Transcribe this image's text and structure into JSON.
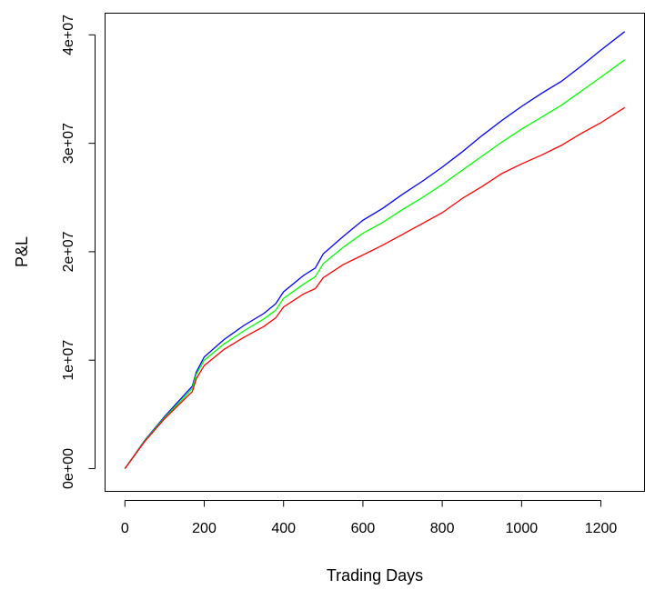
{
  "chart_data": {
    "type": "line",
    "xlabel": "Trading Days",
    "ylabel": "P&L",
    "x_ticks": [
      0,
      200,
      400,
      600,
      800,
      1000,
      1200
    ],
    "x_tick_labels": [
      "0",
      "200",
      "400",
      "600",
      "800",
      "1000",
      "1200"
    ],
    "y_ticks": [
      0,
      10000000,
      20000000,
      30000000,
      40000000
    ],
    "y_tick_labels": [
      "0e+00",
      "1e+07",
      "2e+07",
      "3e+07",
      "4e+07"
    ],
    "xlim": [
      -50,
      1310
    ],
    "ylim": [
      -2100000,
      42000000
    ],
    "grid": false,
    "series": [
      {
        "color": "#0000FF",
        "x": [
          0,
          50,
          100,
          150,
          170,
          180,
          200,
          250,
          300,
          350,
          380,
          400,
          450,
          480,
          500,
          550,
          600,
          650,
          700,
          750,
          800,
          850,
          900,
          950,
          1000,
          1050,
          1100,
          1150,
          1200,
          1260
        ],
        "y": [
          0,
          2600000,
          4800000,
          6800000,
          7600000,
          8900000,
          10300000,
          11900000,
          13200000,
          14300000,
          15200000,
          16300000,
          17800000,
          18500000,
          19800000,
          21400000,
          22900000,
          24000000,
          25300000,
          26500000,
          27800000,
          29200000,
          30700000,
          32100000,
          33400000,
          34600000,
          35700000,
          37100000,
          38600000,
          40300000
        ]
      },
      {
        "color": "#00FF00",
        "x": [
          0,
          50,
          100,
          150,
          170,
          180,
          200,
          250,
          300,
          350,
          380,
          400,
          450,
          480,
          500,
          550,
          600,
          650,
          700,
          750,
          800,
          850,
          900,
          950,
          1000,
          1050,
          1100,
          1150,
          1200,
          1260
        ],
        "y": [
          0,
          2550000,
          4700000,
          6600000,
          7400000,
          8700000,
          10000000,
          11500000,
          12700000,
          13800000,
          14600000,
          15700000,
          17000000,
          17700000,
          18900000,
          20400000,
          21700000,
          22700000,
          23900000,
          25000000,
          26200000,
          27500000,
          28800000,
          30100000,
          31300000,
          32400000,
          33500000,
          34800000,
          36100000,
          37700000
        ]
      },
      {
        "color": "#FF0000",
        "x": [
          0,
          50,
          100,
          150,
          170,
          180,
          200,
          250,
          300,
          350,
          380,
          400,
          450,
          480,
          500,
          550,
          600,
          650,
          700,
          750,
          800,
          850,
          900,
          950,
          1000,
          1050,
          1100,
          1150,
          1200,
          1260
        ],
        "y": [
          0,
          2500000,
          4600000,
          6400000,
          7100000,
          8300000,
          9500000,
          11000000,
          12100000,
          13100000,
          13900000,
          14900000,
          16100000,
          16600000,
          17600000,
          18800000,
          19700000,
          20600000,
          21600000,
          22600000,
          23600000,
          24900000,
          26000000,
          27200000,
          28100000,
          28900000,
          29800000,
          30900000,
          31900000,
          33300000
        ]
      }
    ]
  }
}
